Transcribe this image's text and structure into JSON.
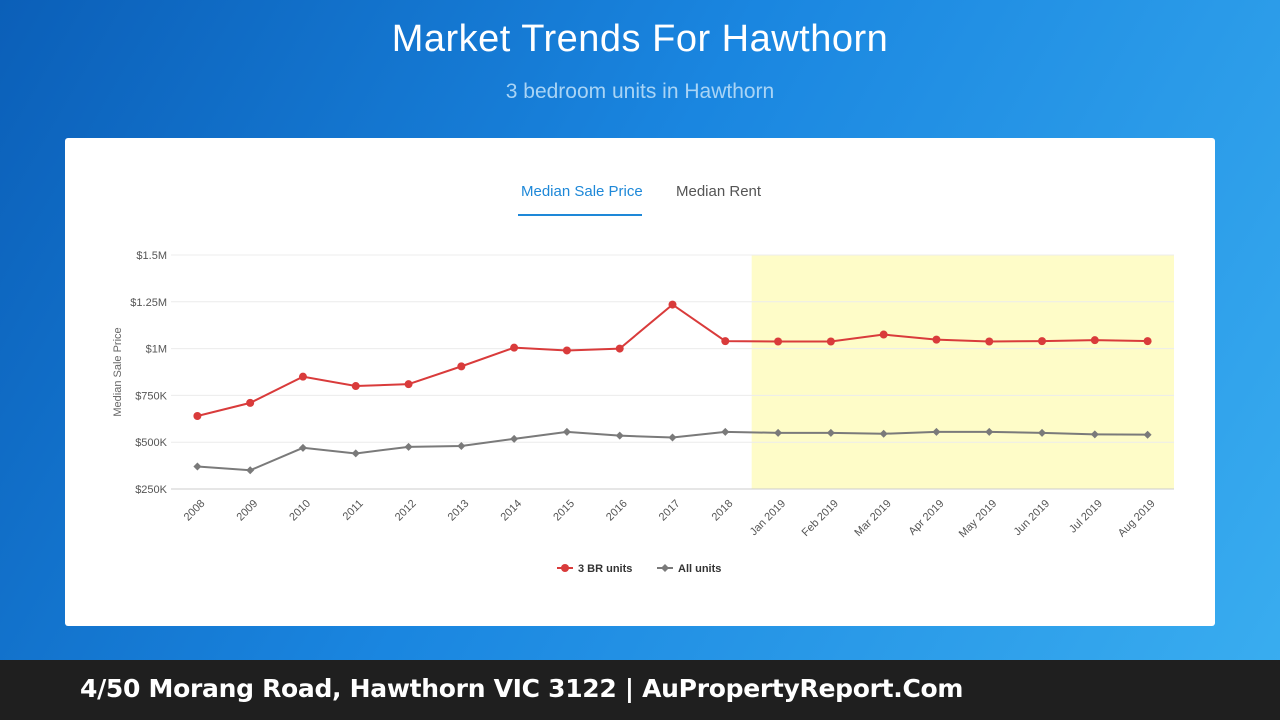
{
  "header": {
    "title": "Market Trends For Hawthorn",
    "subtitle": "3 bedroom units in Hawthorn"
  },
  "tabs": [
    {
      "label": "Median Sale Price",
      "active": true
    },
    {
      "label": "Median Rent",
      "active": false
    }
  ],
  "footer": {
    "text": "4/50 Morang Road, Hawthorn VIC 3122 | AuPropertyReport.Com"
  },
  "colors": {
    "accent": "#1e88d8",
    "series_3br": "#d93b3b",
    "series_all": "#7a7a7a",
    "highlight": "#fefcc8"
  },
  "chart_data": {
    "type": "line",
    "ylabel": "Median Sale Price",
    "ylim": [
      250000,
      1500000
    ],
    "yticks": [
      250000,
      500000,
      750000,
      1000000,
      1250000,
      1500000
    ],
    "ytick_labels": [
      "$250K",
      "$500K",
      "$750K",
      "$1M",
      "$1.25M",
      "$1.5M"
    ],
    "categories": [
      "2008",
      "2009",
      "2010",
      "2011",
      "2012",
      "2013",
      "2014",
      "2015",
      "2016",
      "2017",
      "2018",
      "Jan 2019",
      "Feb 2019",
      "Mar 2019",
      "Apr 2019",
      "May 2019",
      "Jun 2019",
      "Jul 2019",
      "Aug 2019"
    ],
    "highlight_from": "Jan 2019",
    "grid": true,
    "legend_position": "bottom-center",
    "series": [
      {
        "name": "3 BR units",
        "color": "#d93b3b",
        "marker": "circle",
        "values": [
          640000,
          710000,
          850000,
          800000,
          810000,
          905000,
          1005000,
          990000,
          1000000,
          1235000,
          1040000,
          1038000,
          1038000,
          1075000,
          1048000,
          1038000,
          1040000,
          1045000,
          1040000
        ]
      },
      {
        "name": "All units",
        "color": "#7a7a7a",
        "marker": "diamond",
        "values": [
          370000,
          350000,
          470000,
          440000,
          475000,
          480000,
          518000,
          555000,
          535000,
          525000,
          555000,
          550000,
          550000,
          545000,
          555000,
          555000,
          550000,
          542000,
          540000
        ]
      }
    ]
  }
}
